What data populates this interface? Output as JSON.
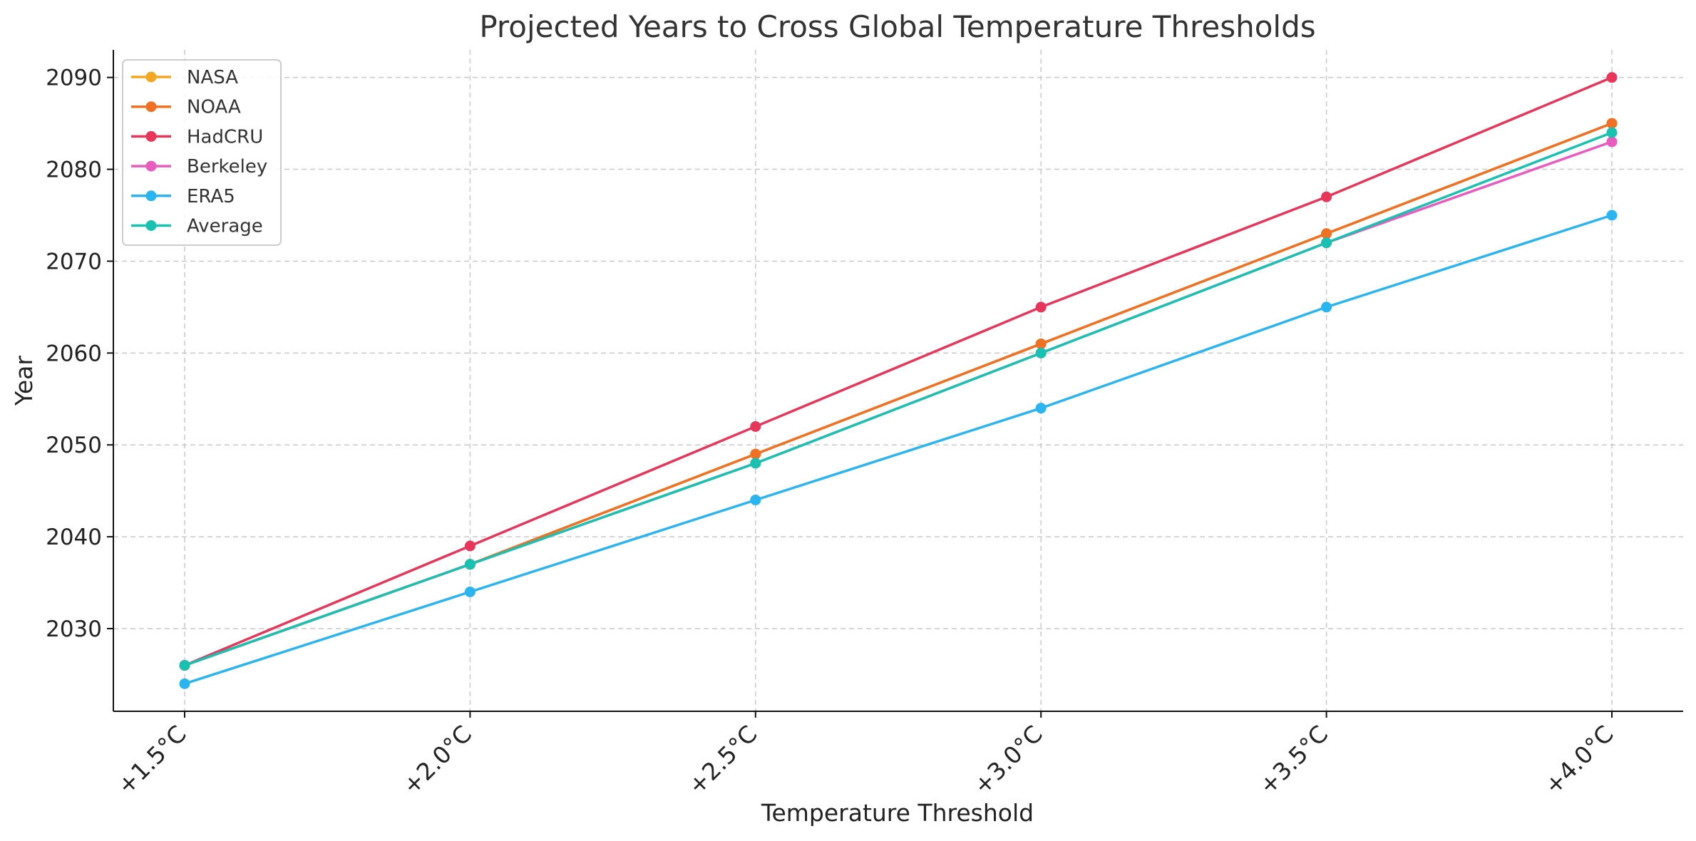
{
  "chart_data": {
    "type": "line",
    "title": "Projected Years to Cross Global Temperature Thresholds",
    "xlabel": "Temperature Threshold",
    "ylabel": "Year",
    "categories": [
      "+1.5°C",
      "+2.0°C",
      "+2.5°C",
      "+3.0°C",
      "+3.5°C",
      "+4.0°C"
    ],
    "ylim": [
      2021,
      2093
    ],
    "yticks": [
      2030,
      2040,
      2050,
      2060,
      2070,
      2080,
      2090
    ],
    "grid": true,
    "legend_position": "top-left",
    "series": [
      {
        "name": "NASA",
        "color": "#f5a623",
        "values": [
          2026,
          2037,
          2049,
          2061,
          2073,
          2085
        ]
      },
      {
        "name": "NOAA",
        "color": "#f07123",
        "values": [
          2026,
          2037,
          2049,
          2061,
          2073,
          2085
        ]
      },
      {
        "name": "HadCRU",
        "color": "#e8355a",
        "values": [
          2026,
          2039,
          2052,
          2065,
          2077,
          2090
        ]
      },
      {
        "name": "Berkeley",
        "color": "#e95bbf",
        "values": [
          2026,
          2037,
          2048,
          2060,
          2072,
          2083
        ]
      },
      {
        "name": "ERA5",
        "color": "#2bb5f0",
        "values": [
          2024,
          2034,
          2044,
          2054,
          2065,
          2075
        ]
      },
      {
        "name": "Average",
        "color": "#18c1b0",
        "values": [
          2026,
          2037,
          2048,
          2060,
          2072,
          2084
        ]
      }
    ]
  }
}
